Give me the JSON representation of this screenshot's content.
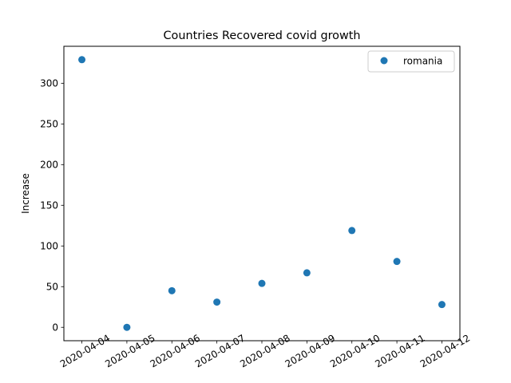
{
  "chart_data": {
    "type": "scatter",
    "title": "Countries Recovered covid growth",
    "xlabel": "",
    "ylabel": "Increase",
    "x": [
      "2020-04-04",
      "2020-04-05",
      "2020-04-06",
      "2020-04-07",
      "2020-04-08",
      "2020-04-09",
      "2020-04-10",
      "2020-04-11",
      "2020-04-12"
    ],
    "series": [
      {
        "name": "romania",
        "color": "#1f77b4",
        "values": [
          329,
          0,
          45,
          31,
          54,
          67,
          119,
          81,
          28
        ]
      }
    ],
    "yticks": [
      "0",
      "50",
      "100",
      "150",
      "200",
      "250",
      "300"
    ],
    "ytick_values": [
      0,
      50,
      100,
      150,
      200,
      250,
      300
    ],
    "ylim": [
      -16.45,
      345.45
    ],
    "grid": false,
    "legend_position": "upper right"
  }
}
